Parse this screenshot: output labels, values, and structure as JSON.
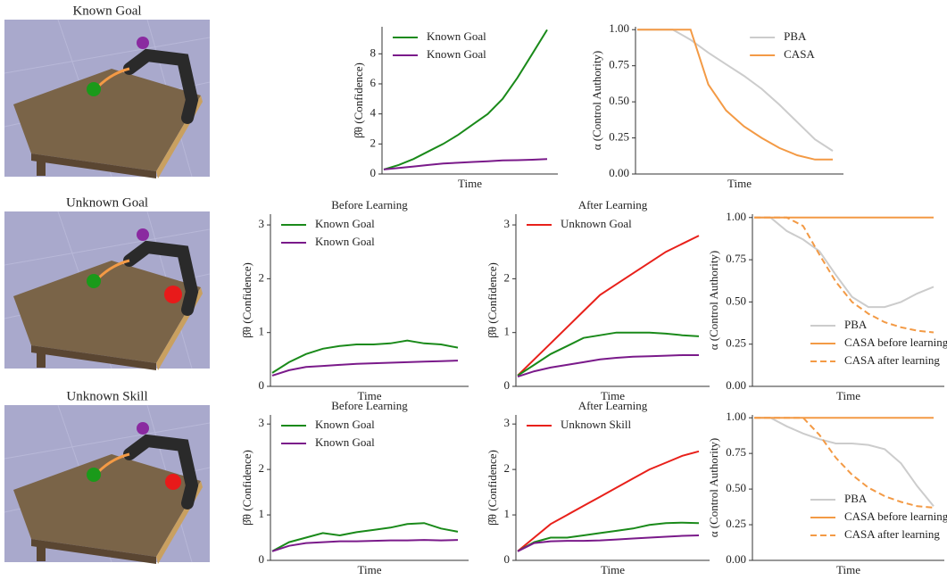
{
  "scenes": [
    {
      "label": "Known Goal"
    },
    {
      "label": "Unknown Goal"
    },
    {
      "label": "Unknown Skill"
    }
  ],
  "chart_data": [
    {
      "type": "line",
      "xlabel": "Time",
      "ylabel": "β̂θ (Confidence)",
      "ylim": [
        0,
        9.8
      ],
      "yticks": [
        0,
        2,
        4,
        6,
        8
      ],
      "legend": "upper left",
      "series": [
        {
          "name": "Known Goal",
          "color": "#1a8a1a",
          "values": [
            0.3,
            0.6,
            1.0,
            1.5,
            2.0,
            2.6,
            3.3,
            4.0,
            5.0,
            6.4,
            8.0,
            9.6
          ]
        },
        {
          "name": "Known Goal",
          "color": "#7a1a8a",
          "values": [
            0.3,
            0.4,
            0.5,
            0.6,
            0.7,
            0.75,
            0.8,
            0.85,
            0.9,
            0.92,
            0.95,
            1.0
          ]
        }
      ]
    },
    {
      "type": "line",
      "xlabel": "Time",
      "ylabel": "α (Control Authority)",
      "ylim": [
        0,
        1.02
      ],
      "yticks": [
        {
          "value": 0,
          "label": "0.00"
        },
        {
          "value": 0.25,
          "label": "0.25"
        },
        {
          "value": 0.5,
          "label": "0.50"
        },
        {
          "value": 0.75,
          "label": "0.75"
        },
        {
          "value": 1,
          "label": "1.00"
        }
      ],
      "legend": "upper right",
      "series": [
        {
          "name": "PBA",
          "color": "#cccccc",
          "values": [
            1,
            1,
            1,
            0.93,
            0.84,
            0.76,
            0.68,
            0.59,
            0.48,
            0.36,
            0.24,
            0.16
          ]
        },
        {
          "name": "CASA",
          "color": "#f39a45",
          "values": [
            1,
            1,
            1,
            1,
            0.62,
            0.44,
            0.33,
            0.25,
            0.18,
            0.13,
            0.1,
            0.1
          ]
        }
      ]
    },
    {
      "type": "line",
      "title": "Before Learning",
      "xlabel": "Time",
      "ylabel": "β̂θ (Confidence)",
      "ylim": [
        0,
        3.2
      ],
      "yticks": [
        0,
        1,
        2,
        3
      ],
      "legend": "upper left",
      "series": [
        {
          "name": "Known Goal",
          "color": "#1a8a1a",
          "values": [
            0.25,
            0.45,
            0.6,
            0.7,
            0.75,
            0.78,
            0.78,
            0.8,
            0.85,
            0.8,
            0.78,
            0.72
          ]
        },
        {
          "name": "Known Goal",
          "color": "#7a1a8a",
          "values": [
            0.2,
            0.3,
            0.36,
            0.38,
            0.4,
            0.42,
            0.43,
            0.44,
            0.45,
            0.46,
            0.47,
            0.48
          ]
        }
      ]
    },
    {
      "type": "line",
      "title": "After Learning",
      "xlabel": "Time",
      "ylabel": "β̂θ (Confidence)",
      "ylim": [
        0,
        3.2
      ],
      "yticks": [
        0,
        1,
        2,
        3
      ],
      "legend": "upper left",
      "series": [
        {
          "name": "Unknown Goal",
          "color": "#e8201a",
          "values": [
            0.2,
            0.5,
            0.8,
            1.1,
            1.4,
            1.7,
            1.9,
            2.1,
            2.3,
            2.5,
            2.65,
            2.8
          ]
        },
        {
          "color": "#1a8a1a",
          "values": [
            0.2,
            0.4,
            0.6,
            0.75,
            0.9,
            0.95,
            1.0,
            1.0,
            1.0,
            0.98,
            0.95,
            0.93
          ]
        },
        {
          "color": "#7a1a8a",
          "values": [
            0.18,
            0.28,
            0.35,
            0.4,
            0.45,
            0.5,
            0.53,
            0.55,
            0.56,
            0.57,
            0.58,
            0.58
          ]
        }
      ]
    },
    {
      "type": "line",
      "xlabel": "Time",
      "ylabel": "α (Control Authority)",
      "ylim": [
        0,
        1.02
      ],
      "yticks": [
        {
          "value": 0,
          "label": "0.00"
        },
        {
          "value": 0.25,
          "label": "0.25"
        },
        {
          "value": 0.5,
          "label": "0.50"
        },
        {
          "value": 0.75,
          "label": "0.75"
        },
        {
          "value": 1,
          "label": "1.00"
        }
      ],
      "legend": "lower right",
      "series": [
        {
          "name": "PBA",
          "color": "#cccccc",
          "values": [
            1,
            1,
            0.92,
            0.87,
            0.8,
            0.66,
            0.53,
            0.47,
            0.47,
            0.5,
            0.55,
            0.59
          ]
        },
        {
          "name": "CASA before learning",
          "color": "#f39a45",
          "values": [
            1,
            1,
            1,
            1,
            1,
            1,
            1,
            1,
            1,
            1,
            1,
            1
          ]
        },
        {
          "name": "CASA after learning",
          "color": "#f39a45",
          "dash": true,
          "values": [
            1,
            1,
            1,
            0.95,
            0.78,
            0.62,
            0.5,
            0.43,
            0.38,
            0.35,
            0.33,
            0.32
          ]
        }
      ]
    },
    {
      "type": "line",
      "title": "Before Learning",
      "xlabel": "Time",
      "ylabel": "β̂θ (Confidence)",
      "ylim": [
        0,
        3.2
      ],
      "yticks": [
        0,
        1,
        2,
        3
      ],
      "legend": "upper left",
      "series": [
        {
          "name": "Known Goal",
          "color": "#1a8a1a",
          "values": [
            0.2,
            0.4,
            0.5,
            0.6,
            0.55,
            0.62,
            0.67,
            0.72,
            0.8,
            0.82,
            0.7,
            0.63
          ]
        },
        {
          "name": "Known Goal",
          "color": "#7a1a8a",
          "values": [
            0.2,
            0.32,
            0.38,
            0.4,
            0.42,
            0.42,
            0.43,
            0.44,
            0.44,
            0.45,
            0.44,
            0.45
          ]
        }
      ]
    },
    {
      "type": "line",
      "title": "After Learning",
      "xlabel": "Time",
      "ylabel": "β̂θ (Confidence)",
      "ylim": [
        0,
        3.2
      ],
      "yticks": [
        0,
        1,
        2,
        3
      ],
      "legend": "upper left",
      "series": [
        {
          "name": "Unknown Skill",
          "color": "#e8201a",
          "values": [
            0.2,
            0.5,
            0.8,
            1.0,
            1.2,
            1.4,
            1.6,
            1.8,
            2.0,
            2.15,
            2.3,
            2.4
          ]
        },
        {
          "color": "#1a8a1a",
          "values": [
            0.2,
            0.4,
            0.5,
            0.5,
            0.55,
            0.6,
            0.65,
            0.7,
            0.78,
            0.82,
            0.83,
            0.82
          ]
        },
        {
          "color": "#7a1a8a",
          "values": [
            0.2,
            0.38,
            0.42,
            0.43,
            0.43,
            0.44,
            0.46,
            0.48,
            0.5,
            0.52,
            0.54,
            0.55
          ]
        }
      ]
    },
    {
      "type": "line",
      "xlabel": "Time",
      "ylabel": "α (Control Authority)",
      "ylim": [
        0,
        1.02
      ],
      "yticks": [
        {
          "value": 0,
          "label": "0.00"
        },
        {
          "value": 0.25,
          "label": "0.25"
        },
        {
          "value": 0.5,
          "label": "0.50"
        },
        {
          "value": 0.75,
          "label": "0.75"
        },
        {
          "value": 1,
          "label": "1.00"
        }
      ],
      "legend": "lower right",
      "series": [
        {
          "name": "PBA",
          "color": "#cccccc",
          "values": [
            1,
            1,
            0.94,
            0.89,
            0.85,
            0.82,
            0.82,
            0.81,
            0.78,
            0.68,
            0.52,
            0.38
          ]
        },
        {
          "name": "CASA before learning",
          "color": "#f39a45",
          "values": [
            1,
            1,
            1,
            1,
            1,
            1,
            1,
            1,
            1,
            1,
            1,
            1
          ]
        },
        {
          "name": "CASA after learning",
          "color": "#f39a45",
          "dash": true,
          "values": [
            1,
            1,
            1,
            1,
            0.88,
            0.72,
            0.6,
            0.51,
            0.45,
            0.41,
            0.38,
            0.37
          ]
        }
      ]
    }
  ]
}
